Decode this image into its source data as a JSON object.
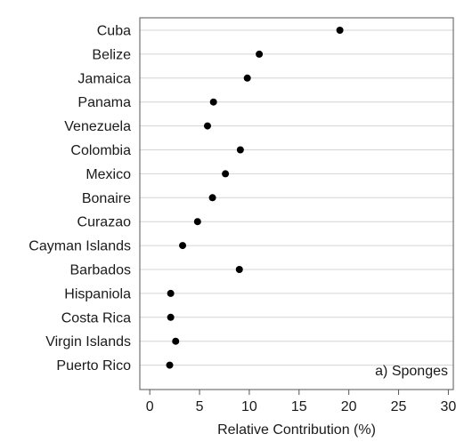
{
  "chart_data": {
    "type": "scatter",
    "subtype": "dot-plot",
    "annotation": "a) Sponges",
    "xlabel": "Relative Contribution (%)",
    "ylabel": "",
    "xlim": [
      -1,
      30.5
    ],
    "xticks": [
      0,
      5,
      10,
      15,
      20,
      25,
      30
    ],
    "grid": "horizontal",
    "categories": [
      "Cuba",
      "Belize",
      "Jamaica",
      "Panama",
      "Venezuela",
      "Colombia",
      "Mexico",
      "Bonaire",
      "Curazao",
      "Cayman Islands",
      "Barbados",
      "Hispaniola",
      "Costa Rica",
      "Virgin Islands",
      "Puerto Rico"
    ],
    "values": [
      19.1,
      11.0,
      9.8,
      6.4,
      5.8,
      9.1,
      7.6,
      6.3,
      4.8,
      3.3,
      9.0,
      2.1,
      2.1,
      2.6,
      2.0
    ],
    "color": "#000000"
  }
}
